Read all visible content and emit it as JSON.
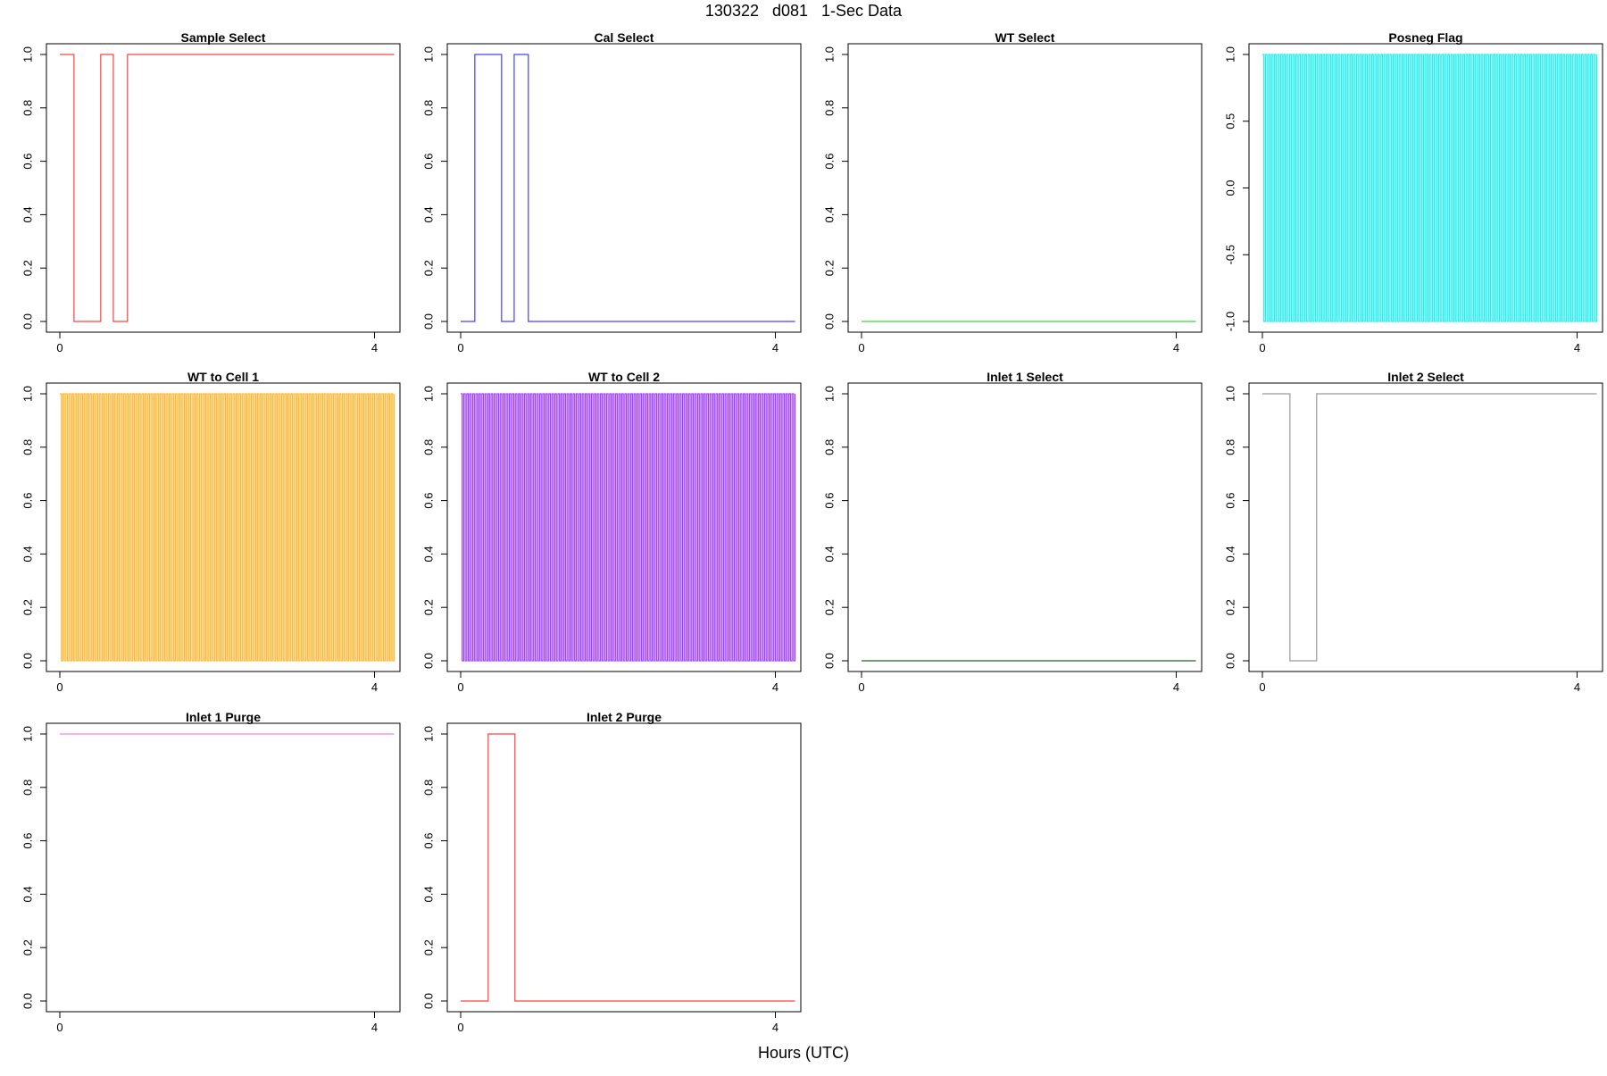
{
  "page": {
    "title": "130322   d081   1-Sec Data",
    "xlabel": "Hours (UTC)"
  },
  "chart_data": [
    {
      "type": "line",
      "title": "Sample Select",
      "color": "#ff4040",
      "xlim": [
        0,
        4.25
      ],
      "ylim": [
        0,
        1
      ],
      "xticks": [
        "0",
        "4"
      ],
      "yticks": [
        "0.0",
        "0.2",
        "0.4",
        "0.6",
        "0.8",
        "1.0"
      ],
      "segments": [
        [
          0,
          1
        ],
        [
          0.18,
          0
        ],
        [
          0.52,
          1
        ],
        [
          0.68,
          0
        ],
        [
          0.86,
          1
        ],
        [
          4.25,
          1
        ]
      ]
    },
    {
      "type": "line",
      "title": "Cal Select",
      "color": "#4040ff",
      "xlim": [
        0,
        4.25
      ],
      "ylim": [
        0,
        1
      ],
      "xticks": [
        "0",
        "4"
      ],
      "yticks": [
        "0.0",
        "0.2",
        "0.4",
        "0.6",
        "0.8",
        "1.0"
      ],
      "segments": [
        [
          0,
          0
        ],
        [
          0.18,
          1
        ],
        [
          0.52,
          0
        ],
        [
          0.68,
          1
        ],
        [
          0.86,
          0
        ],
        [
          4.25,
          0
        ]
      ]
    },
    {
      "type": "line",
      "title": "WT Select",
      "color": "#33dd33",
      "xlim": [
        0,
        4.25
      ],
      "ylim": [
        0,
        1
      ],
      "xticks": [
        "0",
        "4"
      ],
      "yticks": [
        "0.0",
        "0.2",
        "0.4",
        "0.6",
        "0.8",
        "1.0"
      ],
      "segments": [
        [
          0,
          0
        ],
        [
          4.25,
          0
        ]
      ]
    },
    {
      "type": "line",
      "title": "Posneg Flag",
      "color": "#22eeee",
      "xlim": [
        0,
        4.25
      ],
      "ylim": [
        -1,
        1
      ],
      "xticks": [
        "0",
        "4"
      ],
      "yticks": [
        "-1.0",
        "-0.5",
        "0.0",
        "0.5",
        "1.0"
      ],
      "oscillation": {
        "low": -1,
        "high": 1,
        "count": 110
      }
    },
    {
      "type": "line",
      "title": "WT to Cell 1",
      "color": "#ffb733",
      "xlim": [
        0,
        4.25
      ],
      "ylim": [
        0,
        1
      ],
      "xticks": [
        "0",
        "4"
      ],
      "yticks": [
        "0.0",
        "0.2",
        "0.4",
        "0.6",
        "0.8",
        "1.0"
      ],
      "oscillation": {
        "low": 0,
        "high": 1,
        "count": 110
      }
    },
    {
      "type": "line",
      "title": "WT to Cell 2",
      "color": "#a040ff",
      "xlim": [
        0,
        4.25
      ],
      "ylim": [
        0,
        1
      ],
      "xticks": [
        "0",
        "4"
      ],
      "yticks": [
        "0.0",
        "0.2",
        "0.4",
        "0.6",
        "0.8",
        "1.0"
      ],
      "oscillation": {
        "low": 0,
        "high": 1,
        "count": 110
      }
    },
    {
      "type": "line",
      "title": "Inlet 1 Select",
      "color": "#226622",
      "xlim": [
        0,
        4.25
      ],
      "ylim": [
        0,
        1
      ],
      "xticks": [
        "0",
        "4"
      ],
      "yticks": [
        "0.0",
        "0.2",
        "0.4",
        "0.6",
        "0.8",
        "1.0"
      ],
      "segments": [
        [
          0,
          0
        ],
        [
          4.25,
          0
        ]
      ]
    },
    {
      "type": "line",
      "title": "Inlet 2 Select",
      "color": "#999999",
      "xlim": [
        0,
        4.25
      ],
      "ylim": [
        0,
        1
      ],
      "xticks": [
        "0",
        "4"
      ],
      "yticks": [
        "0.0",
        "0.2",
        "0.4",
        "0.6",
        "0.8",
        "1.0"
      ],
      "segments": [
        [
          0,
          1
        ],
        [
          0.35,
          0
        ],
        [
          0.69,
          1
        ],
        [
          4.25,
          1
        ]
      ]
    },
    {
      "type": "line",
      "title": "Inlet 1 Purge",
      "color": "#ee88ee",
      "xlim": [
        0,
        4.25
      ],
      "ylim": [
        0,
        1
      ],
      "xticks": [
        "0",
        "4"
      ],
      "yticks": [
        "0.0",
        "0.2",
        "0.4",
        "0.6",
        "0.8",
        "1.0"
      ],
      "segments": [
        [
          0,
          1
        ],
        [
          4.25,
          1
        ]
      ]
    },
    {
      "type": "line",
      "title": "Inlet 2 Purge",
      "color": "#ff4040",
      "xlim": [
        0,
        4.25
      ],
      "ylim": [
        0,
        1
      ],
      "xticks": [
        "0",
        "4"
      ],
      "yticks": [
        "0.0",
        "0.2",
        "0.4",
        "0.6",
        "0.8",
        "1.0"
      ],
      "segments": [
        [
          0,
          0
        ],
        [
          0.35,
          1
        ],
        [
          0.69,
          0
        ],
        [
          4.25,
          0
        ]
      ]
    }
  ]
}
